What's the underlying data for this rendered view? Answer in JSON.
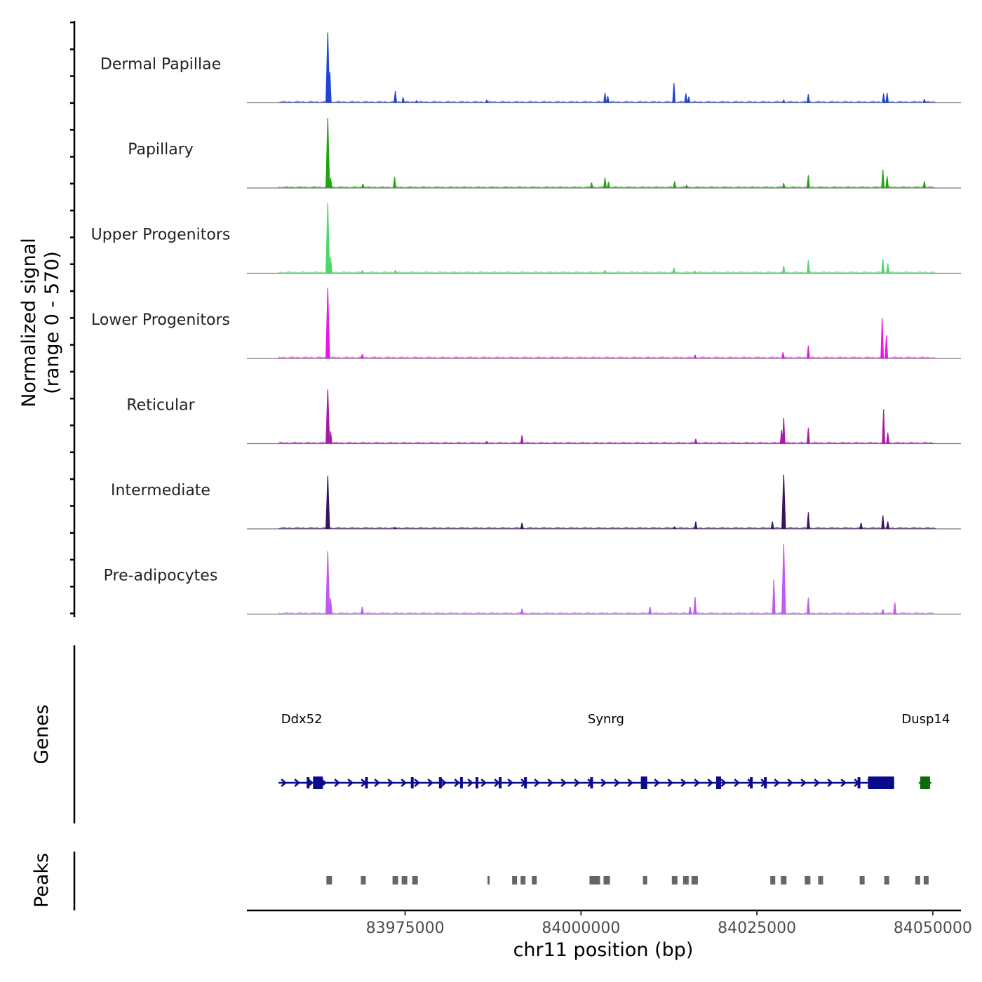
{
  "chart_data": {
    "type": "area",
    "chromosome": "chr11",
    "xlabel": "chr11 position (bp)",
    "xlim": [
      83952500,
      84054000
    ],
    "x_ticks": [
      83975000,
      84000000,
      84025000,
      84050000
    ],
    "x_tick_labels": [
      "83975000",
      "84000000",
      "84025000",
      "84050000"
    ],
    "coverage": {
      "ylabel_line1": "Normalized signal",
      "ylabel_line2": "(range 0 - 570)",
      "ylim": [
        0,
        570
      ],
      "tracks": [
        {
          "name": "Dermal Papillae",
          "color": "#1f44d6",
          "peaks": [
            [
              83964000,
              570
            ],
            [
              83964300,
              250
            ],
            [
              83973600,
              95
            ],
            [
              83974700,
              45
            ],
            [
              83976600,
              20
            ],
            [
              83986600,
              25
            ],
            [
              84003400,
              80
            ],
            [
              84003800,
              55
            ],
            [
              84013200,
              160
            ],
            [
              84014900,
              75
            ],
            [
              84015300,
              50
            ],
            [
              84028800,
              25
            ],
            [
              84032300,
              70
            ],
            [
              84043000,
              75
            ],
            [
              84043500,
              80
            ],
            [
              84048800,
              30
            ]
          ]
        },
        {
          "name": "Papillary",
          "color": "#1fa50f",
          "peaks": [
            [
              83964000,
              570
            ],
            [
              83964400,
              80
            ],
            [
              83969000,
              35
            ],
            [
              83973500,
              90
            ],
            [
              84001500,
              45
            ],
            [
              84003400,
              85
            ],
            [
              84003900,
              50
            ],
            [
              84013300,
              55
            ],
            [
              84015000,
              25
            ],
            [
              84028800,
              40
            ],
            [
              84032300,
              105
            ],
            [
              84042900,
              150
            ],
            [
              84043500,
              95
            ],
            [
              84048800,
              55
            ]
          ]
        },
        {
          "name": "Upper Progenitors",
          "color": "#4fd66b",
          "peaks": [
            [
              83964000,
              570
            ],
            [
              83964400,
              130
            ],
            [
              83968900,
              25
            ],
            [
              83973600,
              25
            ],
            [
              84003400,
              25
            ],
            [
              84013200,
              45
            ],
            [
              84016200,
              20
            ],
            [
              84028800,
              60
            ],
            [
              84032300,
              105
            ],
            [
              84042900,
              115
            ],
            [
              84043600,
              80
            ]
          ]
        },
        {
          "name": "Lower Progenitors",
          "color": "#e419e6",
          "peaks": [
            [
              83964000,
              570
            ],
            [
              83968900,
              35
            ],
            [
              84016200,
              30
            ],
            [
              84028700,
              50
            ],
            [
              84032300,
              105
            ],
            [
              84042800,
              330
            ],
            [
              84043400,
              190
            ]
          ]
        },
        {
          "name": "Reticular",
          "color": "#a61ca6",
          "peaks": [
            [
              83964000,
              440
            ],
            [
              83964400,
              100
            ],
            [
              83986600,
              20
            ],
            [
              83991600,
              70
            ],
            [
              84016300,
              40
            ],
            [
              84028500,
              110
            ],
            [
              84028800,
              210
            ],
            [
              84032300,
              130
            ],
            [
              84043000,
              280
            ],
            [
              84043600,
              90
            ]
          ]
        },
        {
          "name": "Intermediate",
          "color": "#3a145c",
          "peaks": [
            [
              83964000,
              430
            ],
            [
              83973600,
              15
            ],
            [
              83991600,
              50
            ],
            [
              84013300,
              20
            ],
            [
              84016300,
              60
            ],
            [
              84027200,
              60
            ],
            [
              84028800,
              440
            ],
            [
              84032300,
              135
            ],
            [
              84039800,
              50
            ],
            [
              84042900,
              110
            ],
            [
              84043600,
              60
            ]
          ]
        },
        {
          "name": "Pre-adipocytes",
          "color": "#c258f2",
          "peaks": [
            [
              83964000,
              510
            ],
            [
              83964400,
              130
            ],
            [
              83968900,
              60
            ],
            [
              83991600,
              45
            ],
            [
              84009800,
              60
            ],
            [
              84015500,
              60
            ],
            [
              84016200,
              140
            ],
            [
              84027400,
              280
            ],
            [
              84028800,
              570
            ],
            [
              84032300,
              135
            ],
            [
              84042900,
              40
            ],
            [
              84044600,
              95
            ]
          ]
        }
      ]
    },
    "genes_label": "Genes",
    "genes": [
      {
        "name": "Ddx52",
        "start": 83957000,
        "end": 83973000,
        "strand": "+",
        "color": "#0a0a8c"
      },
      {
        "name": "Synrg",
        "start": 83957000,
        "end": 84044500,
        "strand": "+",
        "color": "#0a0a8c"
      },
      {
        "name": "Dusp14",
        "start": 84048000,
        "end": 84049800,
        "strand": "+",
        "color": "#0a6b0a"
      }
    ],
    "peaks_label": "Peaks",
    "peak_regions": [
      [
        83963800,
        83964600
      ],
      [
        83968700,
        83969400
      ],
      [
        83973200,
        83974000
      ],
      [
        83974500,
        83975300
      ],
      [
        83976000,
        83976800
      ],
      [
        83986700,
        83987000
      ],
      [
        83990200,
        83990900
      ],
      [
        83991400,
        83992100
      ],
      [
        83993000,
        83993700
      ],
      [
        84001200,
        84002700
      ],
      [
        84003200,
        84004100
      ],
      [
        84008800,
        84009400
      ],
      [
        84012900,
        84013700
      ],
      [
        84014500,
        84015300
      ],
      [
        84015700,
        84016600
      ],
      [
        84026900,
        84027600
      ],
      [
        84028400,
        84029200
      ],
      [
        84031800,
        84032600
      ],
      [
        84033700,
        84034400
      ],
      [
        84039600,
        84040300
      ],
      [
        84043100,
        84043800
      ],
      [
        84047500,
        84048200
      ],
      [
        84048700,
        84049400
      ]
    ]
  }
}
